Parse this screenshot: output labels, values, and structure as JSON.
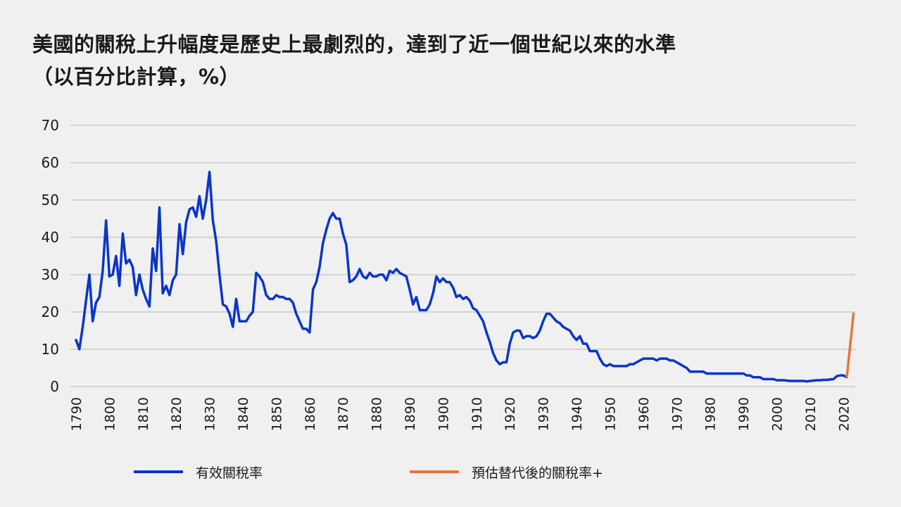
{
  "title_line1": "美國的關稅上升幅度是歷史上最劇烈的，達到了近一個世紀以來的水準",
  "title_line2": "（以百分比計算，%）",
  "chart_data": {
    "type": "line",
    "title": "美國的關稅上升幅度是歷史上最劇烈的，達到了近一個世紀以來的水準（以百分比計算，%）",
    "xlabel": "",
    "ylabel": "",
    "xlim": [
      1790,
      2023
    ],
    "ylim": [
      0,
      70
    ],
    "grid": true,
    "legend_position": "bottom",
    "y_ticks": [
      "0",
      "10",
      "20",
      "30",
      "40",
      "50",
      "60",
      "70"
    ],
    "x_ticks": [
      "1790",
      "1800",
      "1810",
      "1820",
      "1830",
      "1840",
      "1850",
      "1860",
      "1870",
      "1880",
      "1890",
      "1900",
      "1910",
      "1920",
      "1930",
      "1940",
      "1950",
      "1960",
      "1970",
      "1980",
      "1990",
      "2000",
      "2010",
      "2020"
    ],
    "series": [
      {
        "name": "有效關稅率",
        "color": "#0a35c8",
        "x": [
          1790,
          1791,
          1792,
          1793,
          1794,
          1795,
          1796,
          1797,
          1798,
          1799,
          1800,
          1801,
          1802,
          1803,
          1804,
          1805,
          1806,
          1807,
          1808,
          1809,
          1810,
          1811,
          1812,
          1813,
          1814,
          1815,
          1816,
          1817,
          1818,
          1819,
          1820,
          1821,
          1822,
          1823,
          1824,
          1825,
          1826,
          1827,
          1828,
          1829,
          1830,
          1831,
          1832,
          1833,
          1834,
          1835,
          1836,
          1837,
          1838,
          1839,
          1840,
          1841,
          1842,
          1843,
          1844,
          1845,
          1846,
          1847,
          1848,
          1849,
          1850,
          1851,
          1852,
          1853,
          1854,
          1855,
          1856,
          1857,
          1858,
          1859,
          1860,
          1861,
          1862,
          1863,
          1864,
          1865,
          1866,
          1867,
          1868,
          1869,
          1870,
          1871,
          1872,
          1873,
          1874,
          1875,
          1876,
          1877,
          1878,
          1879,
          1880,
          1881,
          1882,
          1883,
          1884,
          1885,
          1886,
          1887,
          1888,
          1889,
          1890,
          1891,
          1892,
          1893,
          1894,
          1895,
          1896,
          1897,
          1898,
          1899,
          1900,
          1901,
          1902,
          1903,
          1904,
          1905,
          1906,
          1907,
          1908,
          1909,
          1910,
          1911,
          1912,
          1913,
          1914,
          1915,
          1916,
          1917,
          1918,
          1919,
          1920,
          1921,
          1922,
          1923,
          1924,
          1925,
          1926,
          1927,
          1928,
          1929,
          1930,
          1931,
          1932,
          1933,
          1934,
          1935,
          1936,
          1937,
          1938,
          1939,
          1940,
          1941,
          1942,
          1943,
          1944,
          1945,
          1946,
          1947,
          1948,
          1949,
          1950,
          1951,
          1952,
          1953,
          1954,
          1955,
          1956,
          1957,
          1958,
          1959,
          1960,
          1961,
          1962,
          1963,
          1964,
          1965,
          1966,
          1967,
          1968,
          1969,
          1970,
          1971,
          1972,
          1973,
          1974,
          1975,
          1976,
          1977,
          1978,
          1979,
          1980,
          1981,
          1982,
          1983,
          1984,
          1985,
          1986,
          1987,
          1988,
          1989,
          1990,
          1991,
          1992,
          1993,
          1994,
          1995,
          1996,
          1997,
          1998,
          1999,
          2000,
          2001,
          2002,
          2003,
          2004,
          2005,
          2006,
          2007,
          2008,
          2009,
          2010,
          2011,
          2012,
          2013,
          2014,
          2015,
          2016,
          2017,
          2018,
          2019,
          2020,
          2021
        ],
        "y": [
          12.5,
          10,
          16,
          23,
          30,
          17.5,
          22.5,
          24,
          31,
          44.5,
          29.5,
          30,
          35,
          27,
          41,
          33,
          34,
          32,
          24.5,
          30,
          26,
          23.5,
          21.5,
          37,
          31,
          48,
          25,
          27,
          24.5,
          28.5,
          30,
          43.5,
          35.5,
          44,
          47.5,
          48,
          45.5,
          51,
          45,
          50,
          57.5,
          44.5,
          39,
          30,
          22,
          21.5,
          19.5,
          16,
          23.5,
          17.5,
          17.5,
          17.5,
          19,
          20,
          30.5,
          29.5,
          28,
          24.5,
          23.5,
          23.5,
          24.5,
          24,
          24,
          23.5,
          23.5,
          22.5,
          19.5,
          17.5,
          15.5,
          15.5,
          14.5,
          26,
          28,
          32,
          38.5,
          42,
          45,
          46.5,
          45,
          45,
          41,
          38,
          28,
          28.5,
          29.5,
          31.5,
          29.5,
          29,
          30.5,
          29.5,
          29.5,
          30,
          30,
          28.5,
          31,
          30.5,
          31.5,
          30.5,
          30,
          29.5,
          26,
          22,
          24,
          20.5,
          20.5,
          20.5,
          22,
          25,
          29.5,
          28,
          29,
          28,
          28,
          26.5,
          24,
          24.5,
          23.5,
          24,
          23,
          21,
          20.5,
          19,
          17.5,
          14.5,
          12,
          9,
          7,
          6,
          6.5,
          6.5,
          11.5,
          14.5,
          15,
          15,
          13,
          13.5,
          13.5,
          13,
          13.5,
          15,
          17.5,
          19.5,
          19.5,
          18.5,
          17.5,
          17,
          16,
          15.5,
          15,
          13.5,
          12.5,
          13.5,
          11.5,
          11.5,
          9.5,
          9.5,
          9.5,
          7.5,
          6,
          5.5,
          6,
          5.5,
          5.5,
          5.5,
          5.5,
          5.5,
          6,
          6,
          6.5,
          7,
          7.5,
          7.5,
          7.5,
          7.5,
          7,
          7.5,
          7.5,
          7.5,
          7,
          7,
          6.5,
          6,
          5.5,
          5,
          4,
          4,
          4,
          4,
          4,
          3.5,
          3.5,
          3.5,
          3.5,
          3.5,
          3.5,
          3.5,
          3.5,
          3.5,
          3.5,
          3.5,
          3.5,
          3,
          3,
          2.5,
          2.5,
          2.5,
          2,
          2,
          2,
          2,
          1.7,
          1.7,
          1.7,
          1.6,
          1.5,
          1.5,
          1.5,
          1.5,
          1.5,
          1.4,
          1.5,
          1.6,
          1.7,
          1.7,
          1.8,
          1.8,
          1.9,
          2,
          2.8,
          3,
          3,
          2.5
        ]
      },
      {
        "name": "預估替代後的關稅率+",
        "color": "#e8743b",
        "x": [
          2021,
          2023
        ],
        "y": [
          2.5,
          19.5
        ]
      }
    ]
  }
}
